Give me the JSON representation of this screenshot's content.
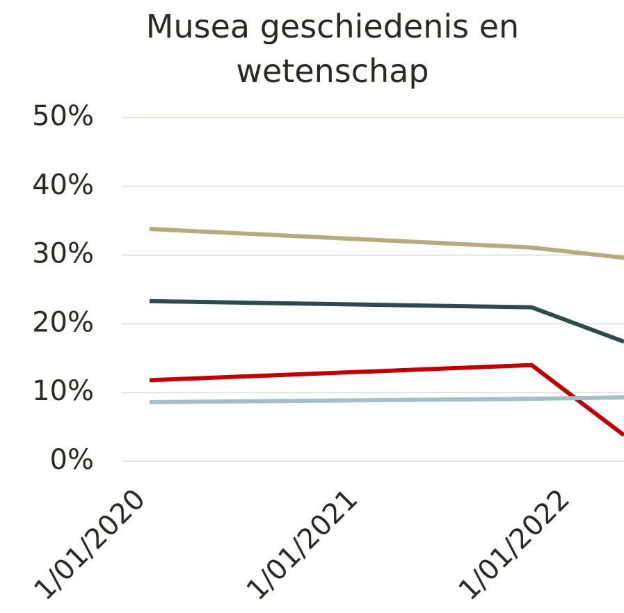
{
  "chart_data": {
    "type": "line",
    "title": "Musea geschiedenis en wetenschap",
    "x": [
      "2020-01-01",
      "2021-10-20",
      "2022-03-28"
    ],
    "xlim": [
      "2019-11-14",
      "2022-03-28"
    ],
    "xticks": [
      {
        "value": "2020-01-01",
        "label": "1/01/2020"
      },
      {
        "value": "2021-01-01",
        "label": "1/01/2021"
      },
      {
        "value": "2022-01-01",
        "label": "1/01/2022"
      }
    ],
    "ylim": [
      0,
      50
    ],
    "yticks": [
      {
        "value": 0,
        "label": "0%"
      },
      {
        "value": 10,
        "label": "10%"
      },
      {
        "value": 20,
        "label": "20%"
      },
      {
        "value": 30,
        "label": "30%"
      },
      {
        "value": 40,
        "label": "40%"
      },
      {
        "value": 50,
        "label": "50%"
      }
    ],
    "grid": true,
    "series": [
      {
        "color": "#b3ab7d",
        "values": [
          33.8,
          31.1,
          29.6
        ]
      },
      {
        "color": "#2f4a4a",
        "values": [
          23.3,
          22.4,
          17.4
        ]
      },
      {
        "color": "#c00000",
        "values": [
          11.8,
          14.0,
          3.8
        ]
      },
      {
        "color": "#a5c0c3",
        "values": [
          8.6,
          9.1,
          9.3
        ]
      }
    ]
  }
}
